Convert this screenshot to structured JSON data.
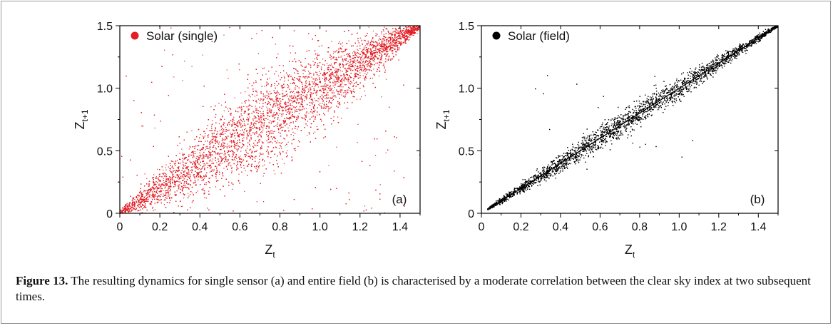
{
  "figure": {
    "caption_label": "Figure 13.",
    "caption_text": " The resulting dynamics for single sensor (a) and entire field (b) is characterised by a moderate correlation between the clear sky index at two subsequent times."
  },
  "chart_data": [
    {
      "type": "scatter",
      "panel": "(a)",
      "legend_position": "top-left",
      "legend": "Solar (single)",
      "color": "#e31e24",
      "xlabel": "Z",
      "xlabel_sub": "t",
      "ylabel": "Z",
      "ylabel_sub": "t+1",
      "xlim": [
        0,
        1.5
      ],
      "ylim": [
        0,
        1.5
      ],
      "xticks": [
        "0",
        "0.2",
        "0.4",
        "0.6",
        "0.8",
        "1.0",
        "1.2",
        "1.4"
      ],
      "yticks": [
        "0",
        "0.5",
        "1.0",
        "1.5"
      ],
      "grid": false,
      "series": [
        {
          "x": [
            0,
            0.2,
            0.4,
            0.6,
            0.8,
            1.0,
            1.2,
            1.4,
            1.5
          ],
          "y": [
            0,
            0.2,
            0.4,
            0.6,
            0.8,
            1.0,
            1.2,
            1.4,
            1.5
          ],
          "note": "dense cloud of points around the diagonal, broad spread (approx. ±0.2–0.3)"
        }
      ]
    },
    {
      "type": "scatter",
      "panel": "(b)",
      "legend_position": "top-left",
      "legend": "Solar (field)",
      "color": "#000000",
      "xlabel": "Z",
      "xlabel_sub": "t",
      "ylabel": "Z",
      "ylabel_sub": "t+1",
      "xlim": [
        0,
        1.5
      ],
      "ylim": [
        0,
        1.5
      ],
      "xticks": [
        "0",
        "0.2",
        "0.4",
        "0.6",
        "0.8",
        "1.0",
        "1.2",
        "1.4"
      ],
      "yticks": [
        "0",
        "0.5",
        "1.0",
        "1.5"
      ],
      "grid": false,
      "series": [
        {
          "x": [
            0.03,
            0.2,
            0.4,
            0.6,
            0.8,
            1.0,
            1.2,
            1.4,
            1.5
          ],
          "y": [
            0.03,
            0.2,
            0.4,
            0.6,
            0.8,
            1.0,
            1.2,
            1.4,
            1.5
          ],
          "note": "narrow band along the diagonal (approx. ±0.05), sparse outliers"
        }
      ]
    }
  ]
}
